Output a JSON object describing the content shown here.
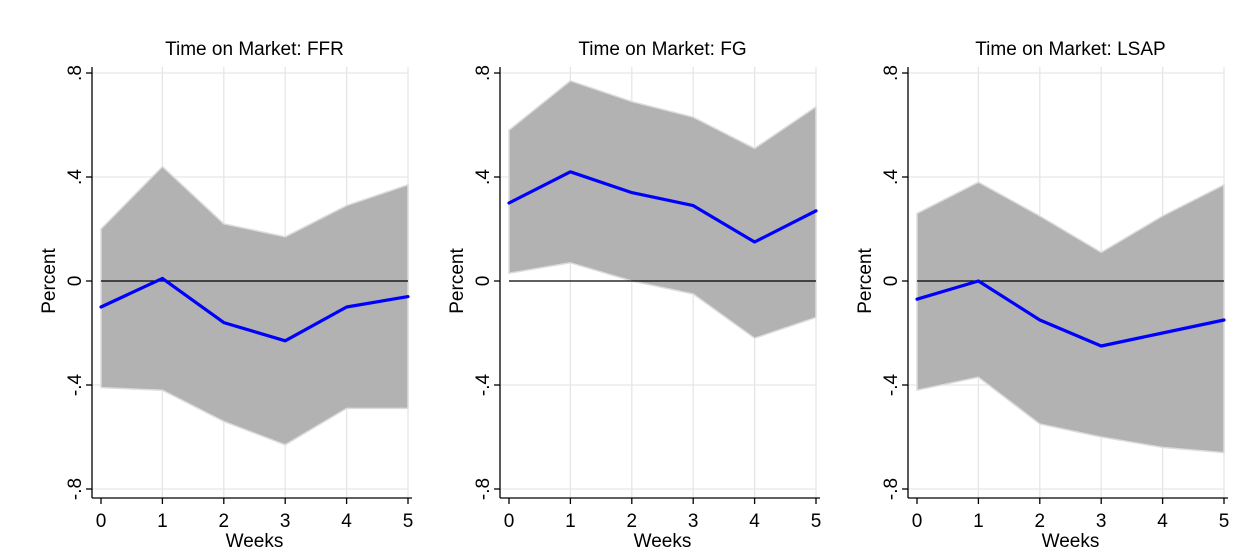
{
  "chart_data": [
    {
      "type": "line",
      "title": "Time on Market: FFR",
      "xlabel": "Weeks",
      "ylabel": "Percent",
      "x": [
        0,
        1,
        2,
        3,
        4,
        5
      ],
      "xlim": [
        0,
        5
      ],
      "ylim": [
        -0.8,
        0.8
      ],
      "xticks": [
        0,
        1,
        2,
        3,
        4,
        5
      ],
      "xtick_labels": [
        "0",
        "1",
        "2",
        "3",
        "4",
        "5"
      ],
      "yticks": [
        -0.8,
        -0.4,
        0,
        0.4,
        0.8
      ],
      "ytick_labels": [
        "-.8",
        "-.4",
        "0",
        ".4",
        ".8"
      ],
      "grid": true,
      "reference_line": 0,
      "series": [
        {
          "values": [
            -0.1,
            0.01,
            -0.16,
            -0.23,
            -0.1,
            -0.06
          ],
          "color": "#0000ff"
        }
      ],
      "band": {
        "lower": [
          -0.41,
          -0.42,
          -0.54,
          -0.63,
          -0.49,
          -0.49
        ],
        "upper": [
          0.2,
          0.44,
          0.22,
          0.17,
          0.29,
          0.37
        ],
        "color": "#b2b2b2"
      }
    },
    {
      "type": "line",
      "title": "Time on Market: FG",
      "xlabel": "Weeks",
      "ylabel": "Percent",
      "x": [
        0,
        1,
        2,
        3,
        4,
        5
      ],
      "xlim": [
        0,
        5
      ],
      "ylim": [
        -0.8,
        0.8
      ],
      "xticks": [
        0,
        1,
        2,
        3,
        4,
        5
      ],
      "xtick_labels": [
        "0",
        "1",
        "2",
        "3",
        "4",
        "5"
      ],
      "yticks": [
        -0.8,
        -0.4,
        0,
        0.4,
        0.8
      ],
      "ytick_labels": [
        "-.8",
        "-.4",
        "0",
        ".4",
        ".8"
      ],
      "grid": true,
      "reference_line": 0,
      "series": [
        {
          "values": [
            0.3,
            0.42,
            0.34,
            0.29,
            0.15,
            0.27
          ],
          "color": "#0000ff"
        }
      ],
      "band": {
        "lower": [
          0.03,
          0.07,
          0.0,
          -0.05,
          -0.22,
          -0.14
        ],
        "upper": [
          0.58,
          0.77,
          0.69,
          0.63,
          0.51,
          0.67
        ],
        "color": "#b2b2b2"
      }
    },
    {
      "type": "line",
      "title": "Time on Market: LSAP",
      "xlabel": "Weeks",
      "ylabel": "Percent",
      "x": [
        0,
        1,
        2,
        3,
        4,
        5
      ],
      "xlim": [
        0,
        5
      ],
      "ylim": [
        -0.8,
        0.8
      ],
      "xticks": [
        0,
        1,
        2,
        3,
        4,
        5
      ],
      "xtick_labels": [
        "0",
        "1",
        "2",
        "3",
        "4",
        "5"
      ],
      "yticks": [
        -0.8,
        -0.4,
        0,
        0.4,
        0.8
      ],
      "ytick_labels": [
        "-.8",
        "-.4",
        "0",
        ".4",
        ".8"
      ],
      "grid": true,
      "reference_line": 0,
      "series": [
        {
          "values": [
            -0.07,
            0.0,
            -0.15,
            -0.25,
            -0.2,
            -0.15
          ],
          "color": "#0000ff"
        }
      ],
      "band": {
        "lower": [
          -0.42,
          -0.37,
          -0.55,
          -0.6,
          -0.64,
          -0.66
        ],
        "upper": [
          0.26,
          0.38,
          0.25,
          0.11,
          0.25,
          0.37
        ],
        "color": "#b2b2b2"
      }
    }
  ]
}
